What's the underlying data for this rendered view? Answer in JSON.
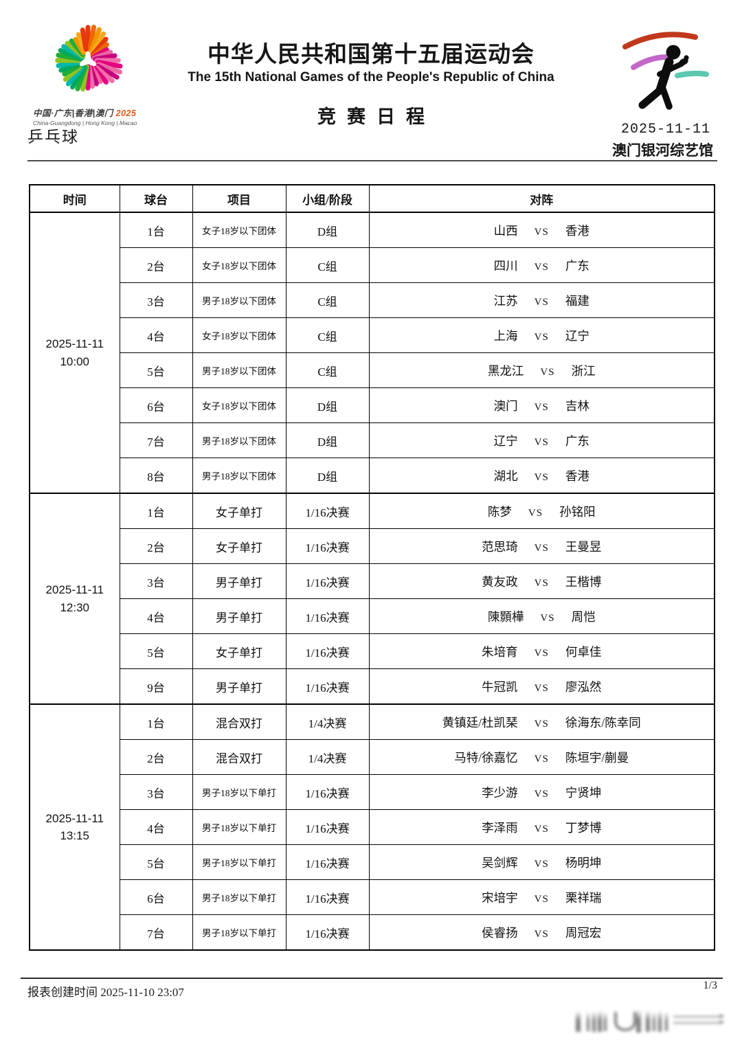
{
  "header": {
    "title": "中华人民共和国第十五届运动会",
    "subtitle": "The 15th National Games of the People's Republic of China",
    "doc_title": "竞赛日程",
    "sport": "乒乓球",
    "date": "2025-11-11",
    "venue": "澳门银河综艺馆",
    "logo": {
      "line1_cn": "中国·广东|香港|澳门 ",
      "year": "2025",
      "line2_en": "China-Guangdong | Hong Kong | Macao"
    }
  },
  "table": {
    "columns": [
      "时间",
      "球台",
      "项目",
      "小组/阶段",
      "对阵"
    ],
    "vs_label": "VS",
    "sections": [
      {
        "time_date": "2025-11-11",
        "time_clock": "10:00",
        "rows": [
          {
            "table_no": "1台",
            "event": "女子18岁以下团体",
            "stage": "D组",
            "left": "山西",
            "right": "香港"
          },
          {
            "table_no": "2台",
            "event": "女子18岁以下团体",
            "stage": "C组",
            "left": "四川",
            "right": "广东"
          },
          {
            "table_no": "3台",
            "event": "男子18岁以下团体",
            "stage": "C组",
            "left": "江苏",
            "right": "福建"
          },
          {
            "table_no": "4台",
            "event": "女子18岁以下团体",
            "stage": "C组",
            "left": "上海",
            "right": "辽宁"
          },
          {
            "table_no": "5台",
            "event": "男子18岁以下团体",
            "stage": "C组",
            "left": "黑龙江",
            "right": "浙江"
          },
          {
            "table_no": "6台",
            "event": "女子18岁以下团体",
            "stage": "D组",
            "left": "澳门",
            "right": "吉林"
          },
          {
            "table_no": "7台",
            "event": "男子18岁以下团体",
            "stage": "D组",
            "left": "辽宁",
            "right": "广东"
          },
          {
            "table_no": "8台",
            "event": "男子18岁以下团体",
            "stage": "D组",
            "left": "湖北",
            "right": "香港"
          }
        ]
      },
      {
        "time_date": "2025-11-11",
        "time_clock": "12:30",
        "rows": [
          {
            "table_no": "1台",
            "event": "女子单打",
            "stage": "1/16决赛",
            "left": "陈梦",
            "right": "孙铭阳"
          },
          {
            "table_no": "2台",
            "event": "女子单打",
            "stage": "1/16决赛",
            "left": "范思琦",
            "right": "王曼昱"
          },
          {
            "table_no": "3台",
            "event": "男子单打",
            "stage": "1/16决赛",
            "left": "黄友政",
            "right": "王楷博"
          },
          {
            "table_no": "4台",
            "event": "男子单打",
            "stage": "1/16决赛",
            "left": "陳顥樺",
            "right": "周恺"
          },
          {
            "table_no": "5台",
            "event": "女子单打",
            "stage": "1/16决赛",
            "left": "朱培育",
            "right": "何卓佳"
          },
          {
            "table_no": "9台",
            "event": "男子单打",
            "stage": "1/16决赛",
            "left": "牛冠凯",
            "right": "廖泓然"
          }
        ]
      },
      {
        "time_date": "2025-11-11",
        "time_clock": "13:15",
        "rows": [
          {
            "table_no": "1台",
            "event": "混合双打",
            "stage": "1/4决赛",
            "left": "黄镇廷/杜凯琹",
            "right": "徐海东/陈幸同"
          },
          {
            "table_no": "2台",
            "event": "混合双打",
            "stage": "1/4决赛",
            "left": "马特/徐嘉忆",
            "right": "陈垣宇/蒯曼"
          },
          {
            "table_no": "3台",
            "event": "男子18岁以下单打",
            "stage": "1/16决赛",
            "left": "李少游",
            "right": "宁贤坤"
          },
          {
            "table_no": "4台",
            "event": "男子18岁以下单打",
            "stage": "1/16决赛",
            "left": "李泽雨",
            "right": "丁梦博"
          },
          {
            "table_no": "5台",
            "event": "男子18岁以下单打",
            "stage": "1/16决赛",
            "left": "吴剑辉",
            "right": "杨明坤"
          },
          {
            "table_no": "6台",
            "event": "男子18岁以下单打",
            "stage": "1/16决赛",
            "left": "宋培宇",
            "right": "栗祥瑞"
          },
          {
            "table_no": "7台",
            "event": "男子18岁以下单打",
            "stage": "1/16决赛",
            "left": "侯睿扬",
            "right": "周冠宏"
          }
        ]
      }
    ]
  },
  "footer": {
    "created_text": "报表创建时间 2025-11-10 23:07",
    "page": "1/3"
  },
  "colors": {
    "logo_orange": [
      "#e8380d",
      "#ed6a02",
      "#f29600",
      "#f5aa1a"
    ],
    "logo_magenta": [
      "#e4007f",
      "#ea68a2",
      "#c7007d",
      "#f06eaa"
    ],
    "logo_green": [
      "#8fc31f",
      "#22ac38",
      "#00a95f",
      "#00b7ad"
    ],
    "swoosh_red": "#c0391b",
    "swoosh_purple": "#c168c8",
    "swoosh_teal": "#5bc8af",
    "pictogram_black": "#0d0d0d",
    "year_orange": "#e95513"
  }
}
